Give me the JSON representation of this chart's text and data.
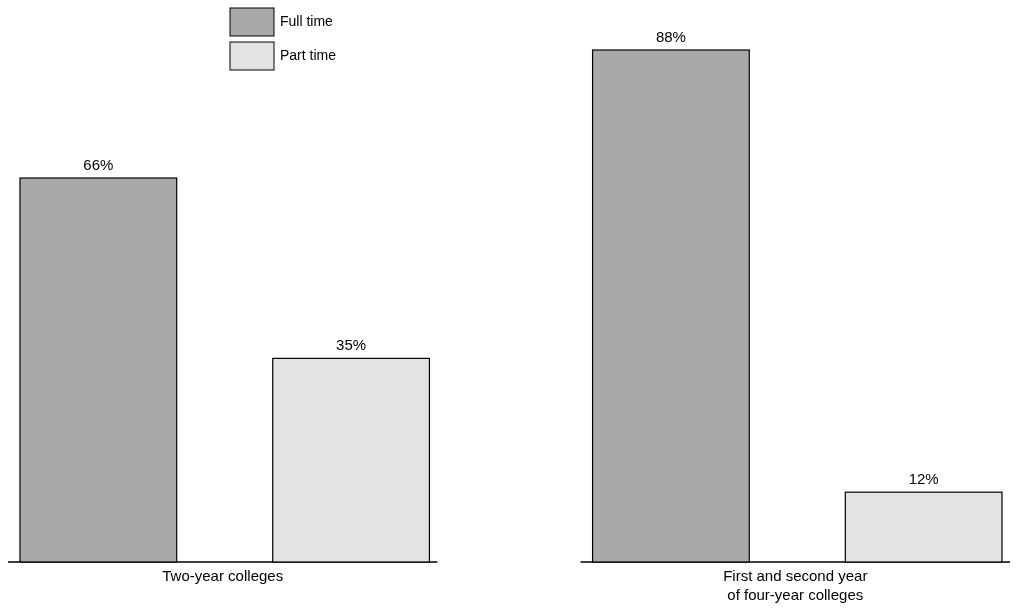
{
  "chart_data": {
    "type": "bar",
    "categories": [
      "Two-year colleges",
      "First and second year\nof four-year colleges"
    ],
    "series": [
      {
        "name": "Full time",
        "color": "#a9a9a9",
        "values": [
          66,
          88
        ],
        "value_labels": [
          "66%",
          "88%"
        ]
      },
      {
        "name": "Part time",
        "color": "#e3e3e3",
        "values": [
          35,
          12
        ],
        "value_labels": [
          "35%",
          "12%"
        ]
      }
    ],
    "legend": "top",
    "grid": false
  }
}
